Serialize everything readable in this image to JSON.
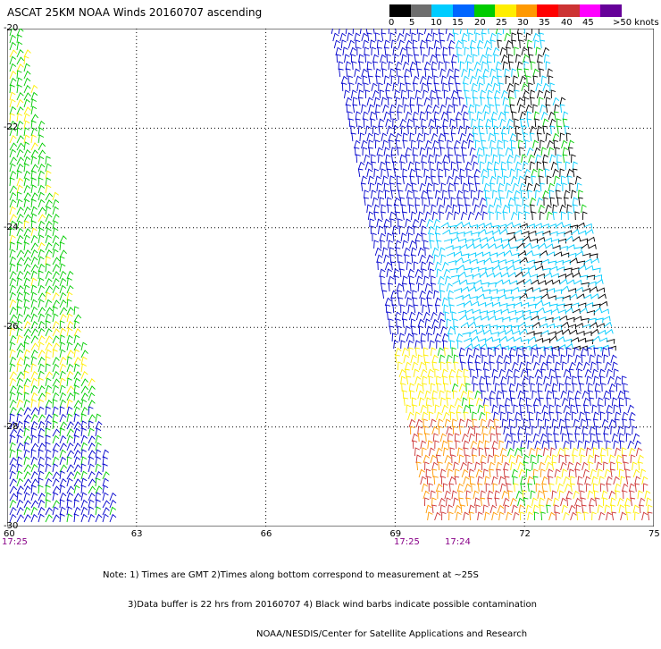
{
  "title": "ASCAT 25KM NOAA Winds 20160707 ascending",
  "legend": {
    "labels": [
      "0",
      "5",
      "10",
      "15",
      "20",
      "25",
      "30",
      "35",
      "40",
      "45",
      ">50 knots"
    ],
    "colors": [
      "#000000",
      "#6e6e6e",
      "#00ccff",
      "#0066ff",
      "#00cc00",
      "#ffee00",
      "#ff9900",
      "#ff0000",
      "#cc3333",
      "#ff00ff",
      "#660099"
    ]
  },
  "map": {
    "lat_labels": [
      "-20",
      "-22",
      "-24",
      "-26",
      "-28",
      "-30"
    ],
    "lon_labels": [
      "60",
      "63",
      "66",
      "69",
      "72",
      "75"
    ],
    "time_labels": [
      "17:25",
      "17:25",
      "17:24"
    ],
    "extent": {
      "lon": [
        60,
        75
      ],
      "lat": [
        -30,
        -20
      ]
    },
    "gridlines": true,
    "swaths": [
      {
        "name": "west swath",
        "colors": [
          "#ffee00",
          "#00cc00",
          "#0000cc"
        ]
      },
      {
        "name": "east swath",
        "colors": [
          "#0000cc",
          "#00ccff",
          "#000000",
          "#00cc00",
          "#ffee00",
          "#ff9900",
          "#cc3333"
        ]
      }
    ]
  },
  "notes": [
    "Note: 1) Times are GMT 2)Times along bottom correspond to measurement at ~25S",
    "3)Data buffer is 22 hrs from 20160707 4) Black wind barbs indicate possible contamination",
    "NOAA/NESDIS/Center for Satellite Applications and Research"
  ]
}
